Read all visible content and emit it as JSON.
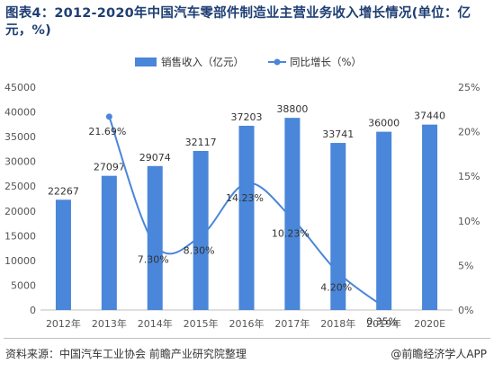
{
  "title": "图表4：2012-2020年中国汽车零部件制造业主营业务收入增长情况(单位：亿元，%)",
  "source": "资料来源：中国汽车工业协会 前瞻产业研究院整理",
  "credit": "@前瞻经济学人APP",
  "chart_data": {
    "type": "bar",
    "categories": [
      "2012年",
      "2013年",
      "2014年",
      "2015年",
      "2016年",
      "2017年",
      "2018年",
      "2019年",
      "2020E"
    ],
    "series": [
      {
        "name": "销售收入（亿元）",
        "type": "bar",
        "axis": "left",
        "color": "#4a86d9",
        "values": [
          22267,
          27097,
          29074,
          32117,
          37203,
          38800,
          33741,
          36000,
          37440
        ],
        "labels": [
          "22267",
          "27097",
          "29074",
          "32117",
          "37203",
          "38800",
          "33741",
          "36000",
          "37440"
        ]
      },
      {
        "name": "同比增长（%）",
        "type": "line",
        "axis": "right",
        "color": "#4a86d9",
        "values": [
          null,
          21.69,
          7.3,
          8.3,
          14.23,
          10.23,
          4.2,
          0.35,
          null
        ],
        "labels": [
          "",
          "21.69%",
          "7.30%",
          "8.30%",
          "14.23%",
          "10.23%",
          "4.20%",
          "0.35%",
          ""
        ]
      }
    ],
    "y_left": {
      "min": 0,
      "max": 45000,
      "ticks": [
        "0",
        "5000",
        "10000",
        "15000",
        "20000",
        "25000",
        "30000",
        "35000",
        "40000",
        "45000"
      ]
    },
    "y_right": {
      "min": 0,
      "max": 25,
      "ticks": [
        "0%",
        "5%",
        "10%",
        "15%",
        "20%",
        "25%"
      ]
    },
    "legend_position": "top-center",
    "grid": false
  }
}
